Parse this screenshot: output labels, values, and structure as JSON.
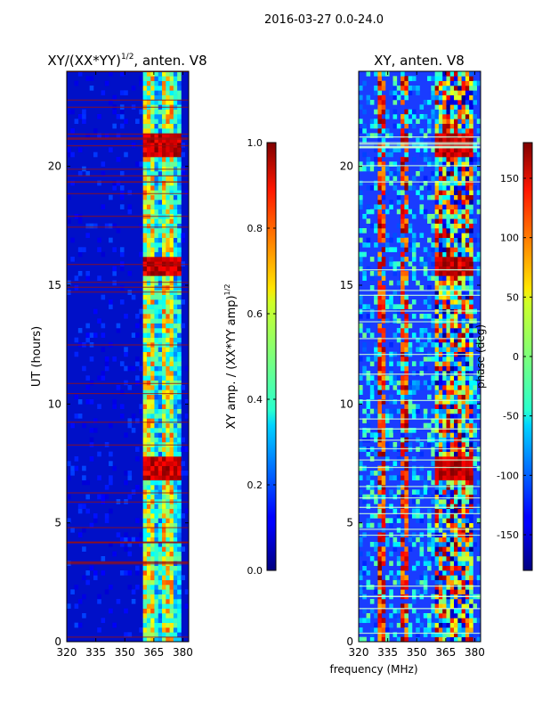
{
  "suptitle": "2016-03-27 0.0-24.0",
  "shared_xlabel": "frequency (MHz)",
  "chart_data": [
    {
      "type": "heatmap",
      "title": "XY/(XX*YY)^{1/2}, anten. V8",
      "title_main": "XY/(XX*YY)",
      "title_exp": "1/2",
      "title_tail": ", anten. V8",
      "xlabel": "",
      "ylabel": "UT (hours)",
      "xlim": [
        320,
        383
      ],
      "ylim": [
        0,
        24
      ],
      "xticks": [
        320,
        335,
        350,
        365,
        380
      ],
      "yticks": [
        0,
        5,
        10,
        15,
        20
      ],
      "colormap": "jet",
      "colorbar": {
        "label": "XY amp. / (XX*YY amp)^{1/2}",
        "label_main": "XY amp. / (XX*YY amp)",
        "label_exp": "1/2",
        "range": [
          0.0,
          1.0
        ],
        "ticks": [
          "0.0",
          "0.2",
          "0.4",
          "0.6",
          "0.8",
          "1.0"
        ],
        "tick_values": [
          0.0,
          0.2,
          0.4,
          0.6,
          0.8,
          1.0
        ]
      },
      "active_band_mhz": [
        360,
        380
      ],
      "strong_bursts_hours": [
        [
          6.8,
          7.8
        ],
        [
          15.5,
          16.1
        ],
        [
          20.5,
          21.3
        ]
      ]
    },
    {
      "type": "heatmap",
      "title": "XY, anten. V8",
      "xlabel": "frequency (MHz)",
      "ylabel": "",
      "xlim": [
        320,
        383
      ],
      "ylim": [
        0,
        24
      ],
      "xticks": [
        320,
        335,
        350,
        365,
        380
      ],
      "yticks": [
        0,
        5,
        10,
        15,
        20
      ],
      "colormap": "jet",
      "colorbar": {
        "label": "phase (deg)",
        "range": [
          -180,
          180
        ],
        "ticks": [
          "-150",
          "-100",
          "-50",
          "0",
          "50",
          "100",
          "150"
        ],
        "tick_values": [
          -150,
          -100,
          -50,
          0,
          50,
          100,
          150
        ]
      },
      "active_band_mhz": [
        360,
        380
      ],
      "strong_bursts_hours": [
        [
          6.8,
          7.8
        ],
        [
          15.5,
          16.1
        ],
        [
          20.5,
          21.3
        ]
      ]
    }
  ]
}
